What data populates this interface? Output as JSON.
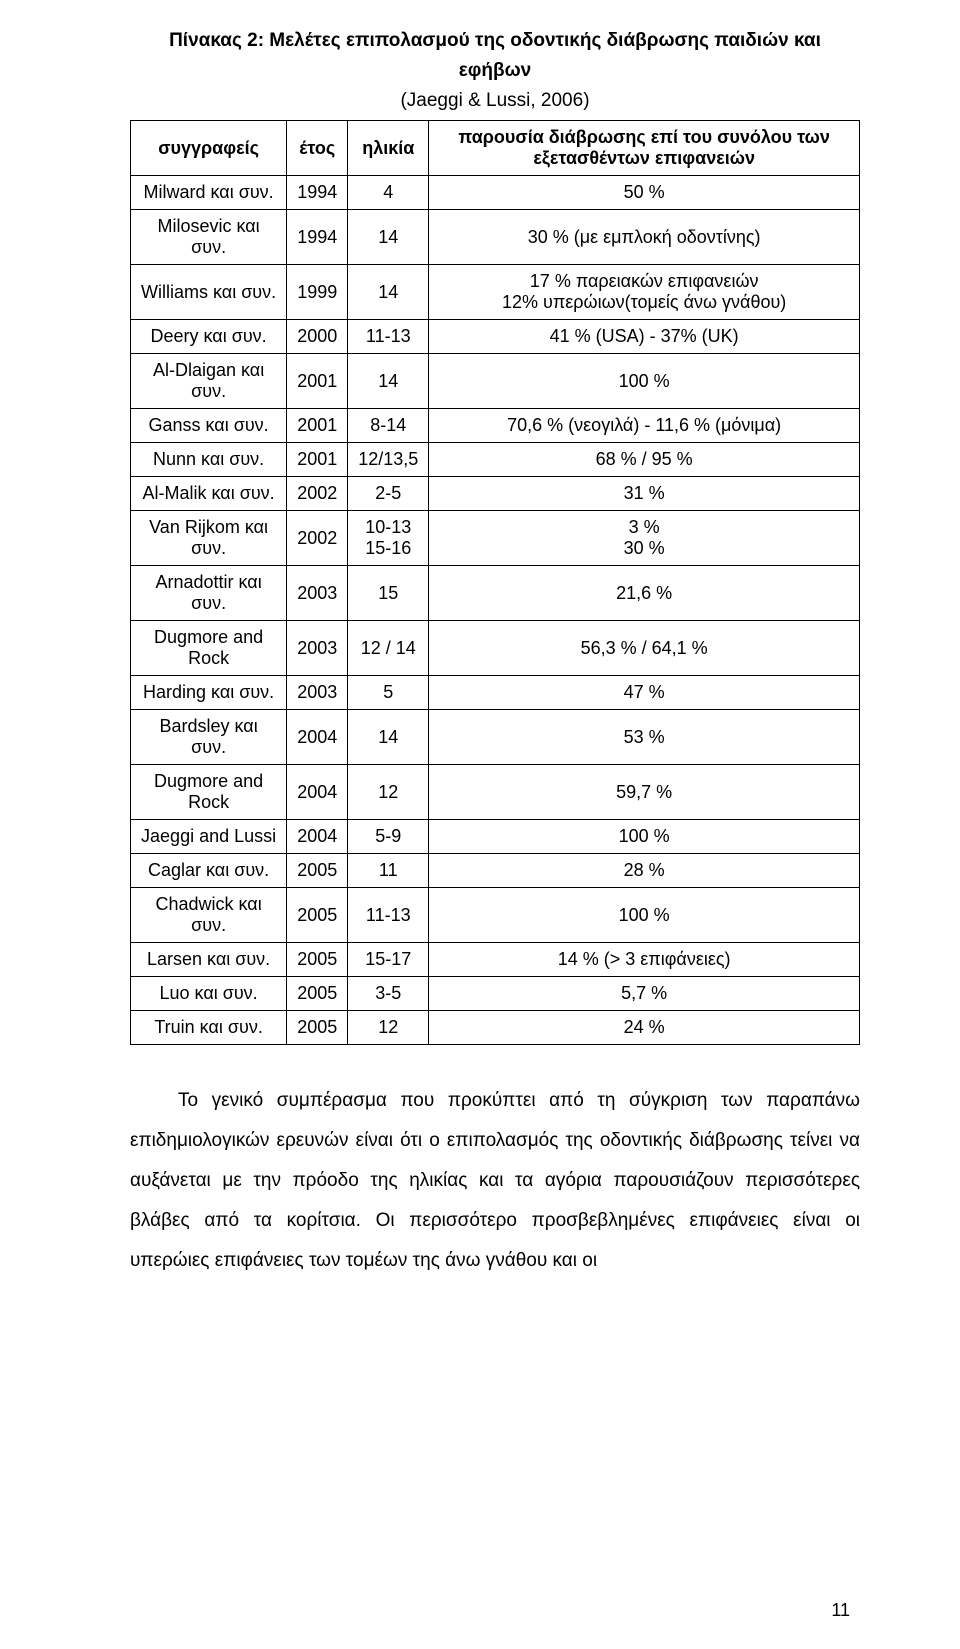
{
  "title_line1": "Πίνακας 2: Μελέτες επιπολασμού της οδοντικής διάβρωσης παιδιών και",
  "title_line2": "εφήβων",
  "subtitle": "(Jaeggi & Lussi, 2006)",
  "table": {
    "columns": [
      "συγγραφείς",
      "έτος",
      "ηλικία",
      "παρουσία διάβρωσης επί του συνόλου των εξετασθέντων επιφανειών"
    ],
    "rows": [
      [
        "Milward και συν.",
        "1994",
        "4",
        "50 %"
      ],
      [
        "Milosevic και συν.",
        "1994",
        "14",
        "30 % (με εμπλοκή οδοντίνης)"
      ],
      [
        "Williams και συν.",
        "1999",
        "14",
        "17 % παρειακών επιφανειών\n12% υπερώιων(τομείς άνω γνάθου)"
      ],
      [
        "Deery και συν.",
        "2000",
        "11-13",
        "41 % (USA) - 37% (UK)"
      ],
      [
        "Al-Dlaigan  και συν.",
        "2001",
        "14",
        "100 %"
      ],
      [
        "Ganss και συν.",
        "2001",
        "8-14",
        "70,6 % (νεογιλά) - 11,6 % (μόνιμα)"
      ],
      [
        "Nunn και συν.",
        "2001",
        "12/13,5",
        "68 %  /  95 %"
      ],
      [
        "Al-Malik και συν.",
        "2002",
        "2-5",
        "31 %"
      ],
      [
        "Van Rijkom και συν.",
        "2002",
        "10-13\n15-16",
        "3 %\n30 %"
      ],
      [
        "Arnadottir και συν.",
        "2003",
        "15",
        "21,6 %"
      ],
      [
        "Dugmore and Rock",
        "2003",
        "12 / 14",
        "56,3 %  /  64,1 %"
      ],
      [
        "Harding και συν.",
        "2003",
        "5",
        "47 %"
      ],
      [
        "Bardsley και συν.",
        "2004",
        "14",
        "53 %"
      ],
      [
        "Dugmore and Rock",
        "2004",
        "12",
        "59,7 %"
      ],
      [
        "Jaeggi and Lussi",
        "2004",
        "5-9",
        "100 %"
      ],
      [
        "Caglar και συν.",
        "2005",
        "11",
        "28 %"
      ],
      [
        "Chadwick και συν.",
        "2005",
        "11-13",
        "100 %"
      ],
      [
        "Larsen και συν.",
        "2005",
        "15-17",
        "14 % (> 3 επιφάνειες)"
      ],
      [
        "Luo και συν.",
        "2005",
        "3-5",
        "5,7 %"
      ],
      [
        "Truin και συν.",
        "2005",
        "12",
        "24 %"
      ]
    ]
  },
  "paragraph": "Το γενικό συμπέρασμα που προκύπτει από τη σύγκριση των παραπάνω επιδημιολογικών ερευνών είναι ότι ο επιπολασμός της οδοντικής διάβρωσης τείνει να αυξάνεται με την πρόοδο της ηλικίας και τα αγόρια παρουσιάζουν περισσότερες βλάβες από τα κορίτσια. Οι περισσότερο προσβεβλημένες επιφάνειες είναι οι υπερώιες επιφάνειες των τομέων της άνω γνάθου και οι",
  "page_number": "11"
}
